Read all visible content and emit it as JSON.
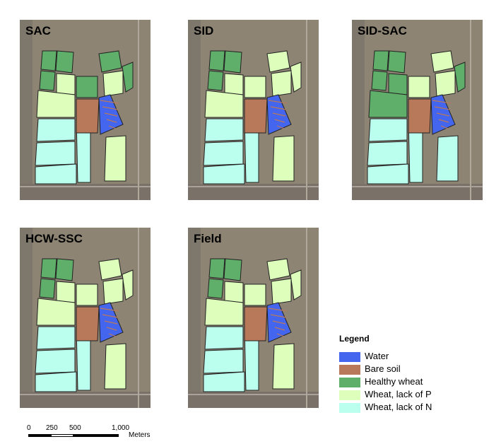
{
  "panels": [
    {
      "label": "SAC"
    },
    {
      "label": "SID"
    },
    {
      "label": "SID-SAC"
    },
    {
      "label": "HCW-SSC"
    },
    {
      "label": "Field"
    }
  ],
  "legend": {
    "title": "Legend",
    "items": [
      {
        "label": "Water",
        "color": "#4466ee"
      },
      {
        "label": " Bare soil",
        "color": "#b8785a"
      },
      {
        "label": "Healthy wheat",
        "color": "#5fae6a"
      },
      {
        "label": "Wheat, lack of P",
        "color": "#ddffbb"
      },
      {
        "label": "Wheat, lack of N",
        "color": "#bbffee"
      }
    ]
  },
  "scalebar": {
    "ticks": [
      "0",
      "250",
      "500",
      "1,000"
    ],
    "unit": "Meters"
  }
}
